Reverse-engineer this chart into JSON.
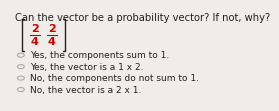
{
  "title": "Can the vector be a probability vector? If not, why?",
  "title_fontsize": 7.2,
  "title_color": "#222222",
  "matrix_top": [
    "2",
    "2"
  ],
  "matrix_bottom": [
    "4",
    "4"
  ],
  "matrix_color": "#cc0000",
  "matrix_fontsize": 8,
  "options": [
    "Yes, the components sum to 1.",
    "Yes, the vector is a 1 x 2.",
    "No, the components do not sum to 1.",
    "No, the vector is a 2 x 1."
  ],
  "option_fontsize": 6.5,
  "option_color": "#222222",
  "background_color": "#f0ede8",
  "circle_color": "#aaaaaa",
  "bracket_color": "#222222"
}
